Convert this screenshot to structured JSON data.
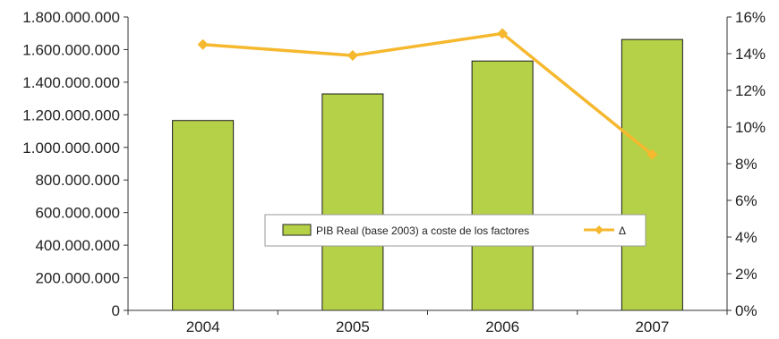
{
  "chart_data": {
    "type": "bar",
    "categories": [
      "2004",
      "2005",
      "2006",
      "2007"
    ],
    "series": [
      {
        "name": "PIB Real (base 2003) a coste de los factores",
        "type": "bar",
        "axis": "left",
        "color": "#b5d147",
        "values": [
          1165000000,
          1328000000,
          1530000000,
          1662000000
        ]
      },
      {
        "name": "Δ",
        "type": "line",
        "axis": "right",
        "color": "#f5b82e",
        "values": [
          0.145,
          0.139,
          0.151,
          0.085
        ]
      }
    ],
    "left_axis": {
      "ylim": [
        0,
        1800000000
      ],
      "tick_values": [
        0,
        200000000,
        400000000,
        600000000,
        800000000,
        1000000000,
        1200000000,
        1400000000,
        1600000000,
        1800000000
      ],
      "tick_labels": [
        "0",
        "200.000.000",
        "400.000.000",
        "600.000.000",
        "800.000.000",
        "1.000.000.000",
        "1.200.000.000",
        "1.400.000.000",
        "1.600.000.000",
        "1.800.000.000"
      ]
    },
    "right_axis": {
      "ylim": [
        0,
        0.16
      ],
      "tick_values": [
        0,
        0.02,
        0.04,
        0.06,
        0.08,
        0.1,
        0.12,
        0.14,
        0.16
      ],
      "tick_labels": [
        "0%",
        "2%",
        "4%",
        "6%",
        "8%",
        "10%",
        "12%",
        "14%",
        "16%"
      ]
    },
    "title": "",
    "xlabel": "",
    "ylabel": "",
    "grid": false,
    "legend": {
      "position": "center",
      "entries": [
        "PIB Real (base 2003) a coste de los factores",
        "Δ"
      ]
    }
  }
}
